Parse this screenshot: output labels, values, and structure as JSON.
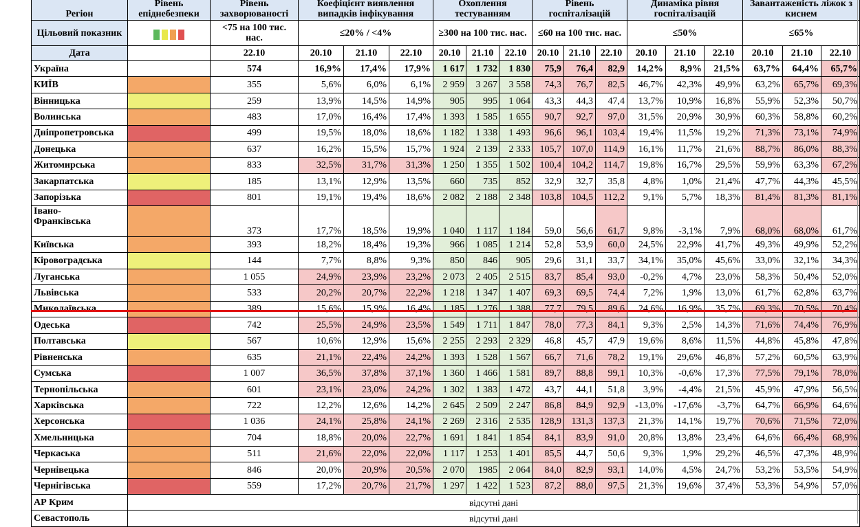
{
  "headers": {
    "region": "Регіон",
    "level": "Рівень епіднебезпеки",
    "incidence": "Рівень захворюваності",
    "positivity": "Коефіцієнт виявлення випадків інфікування",
    "testing": "Охоплення тестуванням",
    "hosp": "Рівень госпіталізацій",
    "hosp_dyn": "Динаміка рівня госпіталізацій",
    "oxygen": "Завантаженість ліжок з киснем"
  },
  "targets": {
    "label": "Цільовий показник",
    "incidence": "<75 на 100 тис. нас.",
    "positivity": "≤20% / <4%",
    "testing": "≥300 на 100 тис. нас.",
    "hosp": "≤60 на 100 тис. нас.",
    "hosp_dyn": "≤50%",
    "oxygen": "≤65%"
  },
  "legend_colors": [
    "#5cb85c",
    "#e8e84a",
    "#f0a050",
    "#e05050"
  ],
  "date_label": "Дата",
  "dates": {
    "d20": "20.10",
    "d21": "21.10",
    "d22": "22.10"
  },
  "rows": [
    {
      "region": "Україна",
      "level": "",
      "inc": "574",
      "pos": [
        "16,9%",
        "17,4%",
        "17,9%"
      ],
      "test": [
        "1 617",
        "1 732",
        "1 830"
      ],
      "hosp": [
        "75,9",
        "76,4",
        "82,9"
      ],
      "dyn": [
        "14,2%",
        "8,9%",
        "21,5%"
      ],
      "oxy": [
        "63,7%",
        "64,4%",
        "65,7%"
      ],
      "pp": [
        0,
        0,
        0
      ],
      "hp": [
        1,
        1,
        1
      ],
      "op": [
        0,
        0,
        1
      ]
    },
    {
      "region": "КИЇВ",
      "level": "o",
      "inc": "355",
      "pos": [
        "5,6%",
        "6,0%",
        "6,1%"
      ],
      "test": [
        "2 959",
        "3 267",
        "3 558"
      ],
      "hosp": [
        "74,3",
        "76,7",
        "82,5"
      ],
      "dyn": [
        "46,7%",
        "42,3%",
        "49,9%"
      ],
      "oxy": [
        "63,2%",
        "65,7%",
        "69,3%"
      ],
      "pp": [
        0,
        0,
        0
      ],
      "hp": [
        1,
        1,
        1
      ],
      "op": [
        0,
        1,
        1
      ]
    },
    {
      "region": "Вінницька",
      "level": "y",
      "inc": "259",
      "pos": [
        "13,9%",
        "14,5%",
        "14,9%"
      ],
      "test": [
        "905",
        "995",
        "1 064"
      ],
      "hosp": [
        "43,3",
        "44,3",
        "47,4"
      ],
      "dyn": [
        "13,7%",
        "10,9%",
        "16,8%"
      ],
      "oxy": [
        "55,9%",
        "52,3%",
        "50,7%"
      ],
      "pp": [
        0,
        0,
        0
      ],
      "hp": [
        0,
        0,
        0
      ],
      "op": [
        0,
        0,
        0
      ]
    },
    {
      "region": "Волинська",
      "level": "o",
      "inc": "483",
      "pos": [
        "17,0%",
        "16,4%",
        "17,4%"
      ],
      "test": [
        "1 393",
        "1 585",
        "1 655"
      ],
      "hosp": [
        "90,7",
        "92,7",
        "97,0"
      ],
      "dyn": [
        "31,5%",
        "20,9%",
        "30,9%"
      ],
      "oxy": [
        "60,3%",
        "58,8%",
        "60,2%"
      ],
      "pp": [
        0,
        0,
        0
      ],
      "hp": [
        1,
        1,
        1
      ],
      "op": [
        0,
        0,
        0
      ]
    },
    {
      "region": "Дніпропетровська",
      "level": "r",
      "inc": "499",
      "pos": [
        "19,5%",
        "18,0%",
        "18,6%"
      ],
      "test": [
        "1 182",
        "1 338",
        "1 493"
      ],
      "hosp": [
        "96,6",
        "96,1",
        "103,4"
      ],
      "dyn": [
        "19,4%",
        "11,5%",
        "19,2%"
      ],
      "oxy": [
        "71,3%",
        "73,1%",
        "74,9%"
      ],
      "pp": [
        0,
        0,
        0
      ],
      "hp": [
        1,
        1,
        1
      ],
      "op": [
        1,
        1,
        1
      ]
    },
    {
      "region": "Донецька",
      "level": "o",
      "inc": "637",
      "pos": [
        "16,2%",
        "15,5%",
        "15,7%"
      ],
      "test": [
        "1 924",
        "2 139",
        "2 333"
      ],
      "hosp": [
        "105,7",
        "107,0",
        "114,9"
      ],
      "dyn": [
        "16,1%",
        "11,7%",
        "21,6%"
      ],
      "oxy": [
        "88,7%",
        "86,0%",
        "88,3%"
      ],
      "pp": [
        0,
        0,
        0
      ],
      "hp": [
        1,
        1,
        1
      ],
      "op": [
        1,
        1,
        1
      ]
    },
    {
      "region": "Житомирська",
      "level": "o",
      "inc": "833",
      "pos": [
        "32,5%",
        "31,7%",
        "31,3%"
      ],
      "test": [
        "1 250",
        "1 355",
        "1 502"
      ],
      "hosp": [
        "100,4",
        "104,2",
        "114,7"
      ],
      "dyn": [
        "19,8%",
        "16,7%",
        "29,5%"
      ],
      "oxy": [
        "59,9%",
        "63,3%",
        "67,2%"
      ],
      "pp": [
        1,
        1,
        1
      ],
      "hp": [
        1,
        1,
        1
      ],
      "op": [
        0,
        0,
        1
      ]
    },
    {
      "region": "Закарпатська",
      "level": "y",
      "inc": "185",
      "pos": [
        "13,1%",
        "12,9%",
        "13,5%"
      ],
      "test": [
        "660",
        "735",
        "852"
      ],
      "hosp": [
        "32,9",
        "32,7",
        "35,8"
      ],
      "dyn": [
        "4,8%",
        "1,0%",
        "21,4%"
      ],
      "oxy": [
        "47,7%",
        "44,3%",
        "45,5%"
      ],
      "pp": [
        0,
        0,
        0
      ],
      "hp": [
        0,
        0,
        0
      ],
      "op": [
        0,
        0,
        0
      ]
    },
    {
      "region": "Запорізька",
      "level": "r",
      "inc": "801",
      "pos": [
        "19,1%",
        "19,4%",
        "18,6%"
      ],
      "test": [
        "2 082",
        "2 188",
        "2 348"
      ],
      "hosp": [
        "103,8",
        "104,5",
        "112,2"
      ],
      "dyn": [
        "9,1%",
        "5,7%",
        "18,3%"
      ],
      "oxy": [
        "81,4%",
        "81,3%",
        "81,1%"
      ],
      "pp": [
        0,
        0,
        0
      ],
      "hp": [
        1,
        1,
        1
      ],
      "op": [
        1,
        1,
        1
      ]
    },
    {
      "region": "Івано-\nФранківська",
      "level": "o",
      "inc": "373",
      "pos": [
        "17,7%",
        "18,5%",
        "19,9%"
      ],
      "test": [
        "1 040",
        "1 117",
        "1 184"
      ],
      "hosp": [
        "59,0",
        "56,6",
        "61,7"
      ],
      "dyn": [
        "9,8%",
        "-3,1%",
        "7,9%"
      ],
      "oxy": [
        "68,0%",
        "68,0%",
        "61,7%"
      ],
      "pp": [
        0,
        0,
        0
      ],
      "hp": [
        0,
        0,
        1
      ],
      "op": [
        1,
        1,
        0
      ],
      "tall": true
    },
    {
      "region": "Київська",
      "level": "o",
      "inc": "393",
      "pos": [
        "18,2%",
        "18,4%",
        "19,3%"
      ],
      "test": [
        "966",
        "1 085",
        "1 214"
      ],
      "hosp": [
        "52,8",
        "53,9",
        "60,0"
      ],
      "dyn": [
        "24,5%",
        "22,9%",
        "41,7%"
      ],
      "oxy": [
        "49,3%",
        "49,9%",
        "52,2%"
      ],
      "pp": [
        0,
        0,
        0
      ],
      "hp": [
        0,
        0,
        1
      ],
      "op": [
        0,
        0,
        0
      ]
    },
    {
      "region": "Кіровоградська",
      "level": "y",
      "inc": "144",
      "pos": [
        "7,7%",
        "8,8%",
        "9,3%"
      ],
      "test": [
        "850",
        "846",
        "905"
      ],
      "hosp": [
        "29,6",
        "31,1",
        "33,7"
      ],
      "dyn": [
        "34,1%",
        "35,0%",
        "45,6%"
      ],
      "oxy": [
        "33,0%",
        "32,1%",
        "34,3%"
      ],
      "pp": [
        0,
        0,
        0
      ],
      "hp": [
        0,
        0,
        0
      ],
      "op": [
        0,
        0,
        0
      ]
    },
    {
      "region": "Луганська",
      "level": "o",
      "inc": "1 055",
      "pos": [
        "24,9%",
        "23,9%",
        "23,2%"
      ],
      "test": [
        "2 073",
        "2 405",
        "2 515"
      ],
      "hosp": [
        "83,7",
        "85,4",
        "93,0"
      ],
      "dyn": [
        "-0,2%",
        "4,7%",
        "23,0%"
      ],
      "oxy": [
        "58,3%",
        "50,4%",
        "52,0%"
      ],
      "pp": [
        1,
        1,
        1
      ],
      "hp": [
        1,
        1,
        1
      ],
      "op": [
        0,
        0,
        0
      ]
    },
    {
      "region": "Львівська",
      "level": "o",
      "inc": "533",
      "pos": [
        "20,2%",
        "20,7%",
        "22,2%"
      ],
      "test": [
        "1 218",
        "1 347",
        "1 407"
      ],
      "hosp": [
        "69,3",
        "69,5",
        "74,4"
      ],
      "dyn": [
        "7,2%",
        "1,9%",
        "13,0%"
      ],
      "oxy": [
        "61,7%",
        "62,8%",
        "63,7%"
      ],
      "pp": [
        1,
        1,
        1
      ],
      "hp": [
        1,
        1,
        1
      ],
      "op": [
        0,
        0,
        0
      ]
    },
    {
      "region": "Миколаївська",
      "level": "o",
      "inc": "389",
      "pos": [
        "15,6%",
        "15,9%",
        "16,4%"
      ],
      "test": [
        "1 185",
        "1 276",
        "1 388"
      ],
      "hosp": [
        "77,7",
        "79,5",
        "89,6"
      ],
      "dyn": [
        "24,6%",
        "16,9%",
        "35,7%"
      ],
      "oxy": [
        "69,3%",
        "70,5%",
        "70,4%"
      ],
      "pp": [
        0,
        0,
        0
      ],
      "hp": [
        1,
        1,
        1
      ],
      "op": [
        1,
        1,
        1
      ]
    },
    {
      "region": "Одеська",
      "level": "r",
      "inc": "742",
      "pos": [
        "25,5%",
        "24,9%",
        "23,5%"
      ],
      "test": [
        "1 549",
        "1 711",
        "1 847"
      ],
      "hosp": [
        "78,0",
        "77,3",
        "84,1"
      ],
      "dyn": [
        "9,3%",
        "2,5%",
        "14,3%"
      ],
      "oxy": [
        "71,6%",
        "74,4%",
        "76,9%"
      ],
      "pp": [
        1,
        1,
        1
      ],
      "hp": [
        1,
        1,
        1
      ],
      "op": [
        1,
        1,
        1
      ]
    },
    {
      "region": "Полтавська",
      "level": "y",
      "inc": "567",
      "pos": [
        "10,6%",
        "12,9%",
        "15,6%"
      ],
      "test": [
        "2 255",
        "2 293",
        "2 329"
      ],
      "hosp": [
        "46,8",
        "45,7",
        "47,9"
      ],
      "dyn": [
        "19,6%",
        "8,6%",
        "11,5%"
      ],
      "oxy": [
        "44,8%",
        "45,8%",
        "47,8%"
      ],
      "pp": [
        0,
        0,
        0
      ],
      "hp": [
        0,
        0,
        0
      ],
      "op": [
        0,
        0,
        0
      ]
    },
    {
      "region": "Рівненська",
      "level": "o",
      "inc": "635",
      "pos": [
        "21,1%",
        "22,4%",
        "24,2%"
      ],
      "test": [
        "1 393",
        "1 528",
        "1 567"
      ],
      "hosp": [
        "66,7",
        "71,6",
        "78,2"
      ],
      "dyn": [
        "19,1%",
        "29,6%",
        "46,8%"
      ],
      "oxy": [
        "57,2%",
        "60,5%",
        "63,9%"
      ],
      "pp": [
        1,
        1,
        1
      ],
      "hp": [
        1,
        1,
        1
      ],
      "op": [
        0,
        0,
        0
      ]
    },
    {
      "region": "Сумська",
      "level": "r",
      "inc": "1 007",
      "pos": [
        "36,5%",
        "37,8%",
        "37,1%"
      ],
      "test": [
        "1 360",
        "1 466",
        "1 581"
      ],
      "hosp": [
        "89,7",
        "88,8",
        "99,1"
      ],
      "dyn": [
        "10,3%",
        "-0,6%",
        "17,3%"
      ],
      "oxy": [
        "77,5%",
        "79,1%",
        "78,0%"
      ],
      "pp": [
        1,
        1,
        1
      ],
      "hp": [
        1,
        1,
        1
      ],
      "op": [
        1,
        1,
        1
      ]
    },
    {
      "region": "Тернопільська",
      "level": "o",
      "inc": "601",
      "pos": [
        "23,1%",
        "23,0%",
        "24,2%"
      ],
      "test": [
        "1 302",
        "1 383",
        "1 472"
      ],
      "hosp": [
        "43,7",
        "44,1",
        "51,8"
      ],
      "dyn": [
        "3,9%",
        "-4,4%",
        "21,5%"
      ],
      "oxy": [
        "45,9%",
        "47,9%",
        "56,5%"
      ],
      "pp": [
        1,
        1,
        1
      ],
      "hp": [
        0,
        0,
        0
      ],
      "op": [
        0,
        0,
        0
      ]
    },
    {
      "region": "Харківська",
      "level": "o",
      "inc": "722",
      "pos": [
        "12,2%",
        "12,6%",
        "14,2%"
      ],
      "test": [
        "2 645",
        "2 509",
        "2 247"
      ],
      "hosp": [
        "86,8",
        "84,9",
        "92,9"
      ],
      "dyn": [
        "-13,0%",
        "-17,6%",
        "-3,7%"
      ],
      "oxy": [
        "64,7%",
        "66,9%",
        "64,6%"
      ],
      "pp": [
        0,
        0,
        0
      ],
      "hp": [
        1,
        1,
        1
      ],
      "op": [
        0,
        1,
        0
      ]
    },
    {
      "region": "Херсонська",
      "level": "r",
      "inc": "1 036",
      "pos": [
        "24,1%",
        "25,8%",
        "24,1%"
      ],
      "test": [
        "2 269",
        "2 316",
        "2 535"
      ],
      "hosp": [
        "128,9",
        "131,3",
        "137,3"
      ],
      "dyn": [
        "21,3%",
        "14,1%",
        "19,7%"
      ],
      "oxy": [
        "70,6%",
        "71,5%",
        "72,0%"
      ],
      "pp": [
        1,
        1,
        1
      ],
      "hp": [
        1,
        1,
        1
      ],
      "op": [
        1,
        1,
        1
      ]
    },
    {
      "region": "Хмельницька",
      "level": "o",
      "inc": "704",
      "pos": [
        "18,8%",
        "20,0%",
        "22,7%"
      ],
      "test": [
        "1 691",
        "1 841",
        "1 854"
      ],
      "hosp": [
        "84,1",
        "83,9",
        "91,0"
      ],
      "dyn": [
        "20,8%",
        "13,8%",
        "23,4%"
      ],
      "oxy": [
        "64,6%",
        "66,4%",
        "68,9%"
      ],
      "pp": [
        0,
        1,
        1
      ],
      "hp": [
        1,
        1,
        1
      ],
      "op": [
        0,
        1,
        1
      ]
    },
    {
      "region": "Черкаська",
      "level": "o",
      "inc": "511",
      "pos": [
        "21,6%",
        "22,0%",
        "22,0%"
      ],
      "test": [
        "1 117",
        "1 253",
        "1 401"
      ],
      "hosp": [
        "85,5",
        "44,7",
        "50,6"
      ],
      "dyn": [
        "9,3%",
        "1,9%",
        "29,2%"
      ],
      "oxy": [
        "46,5%",
        "47,3%",
        "48,9%"
      ],
      "pp": [
        1,
        1,
        1
      ],
      "hp": [
        1,
        0,
        0
      ],
      "op": [
        0,
        0,
        0
      ]
    },
    {
      "region": "Чернівецька",
      "level": "o",
      "inc": "846",
      "pos": [
        "20,0%",
        "20,9%",
        "20,5%"
      ],
      "test": [
        "2 070",
        "1985",
        "2 064"
      ],
      "hosp": [
        "84,0",
        "82,9",
        "93,1"
      ],
      "dyn": [
        "14,0%",
        "4,5%",
        "24,7%"
      ],
      "oxy": [
        "53,2%",
        "53,5%",
        "54,9%"
      ],
      "pp": [
        0,
        1,
        1
      ],
      "hp": [
        1,
        1,
        1
      ],
      "op": [
        0,
        0,
        0
      ]
    },
    {
      "region": "Чернігівська",
      "level": "r",
      "inc": "559",
      "pos": [
        "17,2%",
        "20,7%",
        "21,7%"
      ],
      "test": [
        "1 297",
        "1 422",
        "1 523"
      ],
      "hosp": [
        "87,2",
        "88,0",
        "97,5"
      ],
      "dyn": [
        "21,3%",
        "19,6%",
        "37,4%"
      ],
      "oxy": [
        "53,3%",
        "54,9%",
        "57,0%"
      ],
      "pp": [
        0,
        1,
        1
      ],
      "hp": [
        1,
        1,
        1
      ],
      "op": [
        0,
        0,
        0
      ]
    }
  ],
  "missing_rows": [
    {
      "region": "АР Крим",
      "text": "відсутні дані"
    },
    {
      "region": "Севастополь",
      "text": "відсутні дані"
    }
  ]
}
